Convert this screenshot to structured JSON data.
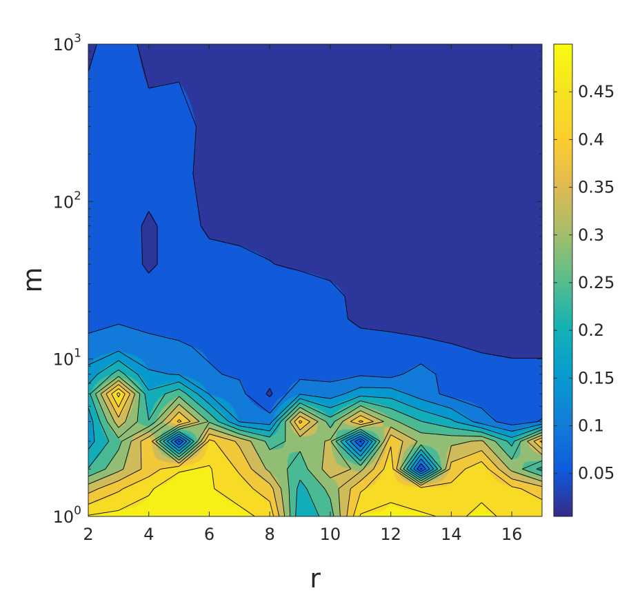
{
  "chart_data": {
    "type": "contour",
    "xlabel": "r",
    "ylabel": "m",
    "x_scale": "linear",
    "y_scale": "log",
    "xlim": [
      2,
      17
    ],
    "ylim": [
      1,
      1000
    ],
    "x_ticks": [
      2,
      4,
      6,
      8,
      10,
      12,
      14,
      16
    ],
    "x_tick_labels": [
      "2",
      "4",
      "6",
      "8",
      "10",
      "12",
      "14",
      "16"
    ],
    "y_ticks": [
      1,
      10,
      100,
      1000
    ],
    "y_tick_labels": [
      {
        "base": "10",
        "exp": "0"
      },
      {
        "base": "10",
        "exp": "1"
      },
      {
        "base": "10",
        "exp": "2"
      },
      {
        "base": "10",
        "exp": "3"
      }
    ],
    "colorbar": {
      "colormap": "parula",
      "range": [
        0.005,
        0.5
      ],
      "ticks": [
        0.05,
        0.1,
        0.15,
        0.2,
        0.25,
        0.3,
        0.35,
        0.4,
        0.45
      ],
      "tick_labels": [
        "0.05",
        "0.1",
        "0.15",
        "0.2",
        "0.25",
        "0.3",
        "0.35",
        "0.4",
        "0.45"
      ]
    },
    "contour_levels": [
      0.0284,
      0.0758,
      0.1232,
      0.1706,
      0.218,
      0.2654,
      0.3128,
      0.3602,
      0.4076,
      0.455
    ],
    "grid": false,
    "legend": "none",
    "x": [
      2,
      3,
      4,
      5,
      6,
      7,
      8,
      9,
      10,
      11,
      12,
      13,
      14,
      15,
      16,
      17
    ],
    "y": [
      1,
      1.5,
      2,
      3,
      4,
      6,
      8,
      12,
      18,
      25,
      40,
      70,
      150,
      300,
      1000
    ],
    "z": [
      [
        0.46,
        0.47,
        0.47,
        0.49,
        0.48,
        0.47,
        0.44,
        0.18,
        0.24,
        0.46,
        0.46,
        0.46,
        0.45,
        0.46,
        0.45,
        0.45
      ],
      [
        0.34,
        0.4,
        0.45,
        0.48,
        0.46,
        0.43,
        0.38,
        0.2,
        0.28,
        0.4,
        0.45,
        0.43,
        0.42,
        0.45,
        0.42,
        0.38
      ],
      [
        0.22,
        0.3,
        0.38,
        0.45,
        0.46,
        0.4,
        0.3,
        0.24,
        0.34,
        0.3,
        0.44,
        0.02,
        0.38,
        0.44,
        0.3,
        0.2
      ],
      [
        0.15,
        0.25,
        0.4,
        0.02,
        0.42,
        0.35,
        0.25,
        0.28,
        0.32,
        0.02,
        0.4,
        0.3,
        0.3,
        0.32,
        0.2,
        0.42
      ],
      [
        0.14,
        0.34,
        0.22,
        0.42,
        0.26,
        0.12,
        0.1,
        0.42,
        0.24,
        0.42,
        0.28,
        0.22,
        0.18,
        0.1,
        0.05,
        0.08
      ],
      [
        0.2,
        0.47,
        0.18,
        0.25,
        0.12,
        0.09,
        0.02,
        0.12,
        0.1,
        0.15,
        0.15,
        0.1,
        0.06,
        0.05,
        0.04,
        0.04
      ],
      [
        0.14,
        0.24,
        0.13,
        0.12,
        0.08,
        0.07,
        0.05,
        0.06,
        0.06,
        0.07,
        0.06,
        0.1,
        0.05,
        0.04,
        0.04,
        0.04
      ],
      [
        0.09,
        0.1,
        0.09,
        0.08,
        0.07,
        0.065,
        0.06,
        0.055,
        0.05,
        0.045,
        0.04,
        0.035,
        0.03,
        0.025,
        0.02,
        0.02
      ],
      [
        0.06,
        0.07,
        0.06,
        0.06,
        0.055,
        0.05,
        0.055,
        0.06,
        0.04,
        0.02,
        0.018,
        0.016,
        0.015,
        0.014,
        0.013,
        0.012
      ],
      [
        0.055,
        0.06,
        0.05,
        0.045,
        0.05,
        0.045,
        0.05,
        0.06,
        0.04,
        0.016,
        0.014,
        0.012,
        0.012,
        0.011,
        0.011,
        0.01
      ],
      [
        0.055,
        0.06,
        0.02,
        0.05,
        0.045,
        0.04,
        0.03,
        0.02,
        0.016,
        0.014,
        0.012,
        0.011,
        0.01,
        0.01,
        0.01,
        0.01
      ],
      [
        0.05,
        0.055,
        0.02,
        0.05,
        0.02,
        0.016,
        0.014,
        0.012,
        0.011,
        0.01,
        0.01,
        0.01,
        0.01,
        0.01,
        0.01,
        0.01
      ],
      [
        0.05,
        0.055,
        0.05,
        0.04,
        0.015,
        0.012,
        0.011,
        0.01,
        0.01,
        0.01,
        0.01,
        0.01,
        0.01,
        0.01,
        0.01,
        0.01
      ],
      [
        0.045,
        0.05,
        0.04,
        0.05,
        0.012,
        0.01,
        0.01,
        0.01,
        0.01,
        0.01,
        0.01,
        0.01,
        0.01,
        0.01,
        0.01,
        0.01
      ],
      [
        0.02,
        0.05,
        0.015,
        0.01,
        0.01,
        0.01,
        0.01,
        0.01,
        0.01,
        0.01,
        0.01,
        0.01,
        0.01,
        0.01,
        0.01,
        0.01
      ]
    ]
  }
}
